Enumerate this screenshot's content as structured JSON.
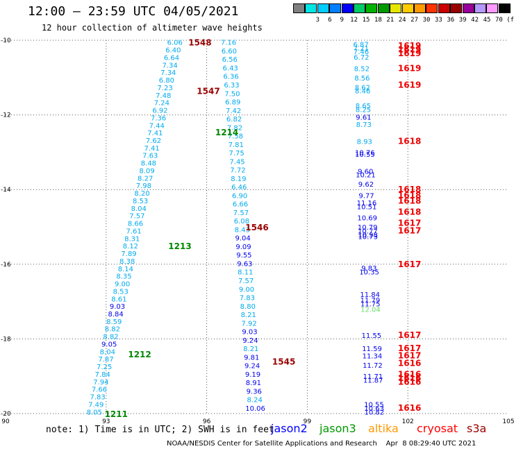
{
  "header": {
    "title": "12:00 — 23:59 UTC 04/05/2021",
    "subtitle": "12 hour collection of altimeter wave heights"
  },
  "color_scale": {
    "unit_label": "(ft)",
    "bins": [
      {
        "label": "",
        "color": "#808080"
      },
      {
        "label": "3",
        "color": "#00e6e6"
      },
      {
        "label": "6",
        "color": "#00ccff"
      },
      {
        "label": "9",
        "color": "#0080ff"
      },
      {
        "label": "12",
        "color": "#0000ff"
      },
      {
        "label": "15",
        "color": "#00cc66"
      },
      {
        "label": "18",
        "color": "#00b300"
      },
      {
        "label": "21",
        "color": "#009900"
      },
      {
        "label": "24",
        "color": "#e6e600"
      },
      {
        "label": "27",
        "color": "#ffcc00"
      },
      {
        "label": "30",
        "color": "#ff9900"
      },
      {
        "label": "33",
        "color": "#ff3300"
      },
      {
        "label": "36",
        "color": "#cc0000"
      },
      {
        "label": "39",
        "color": "#990000"
      },
      {
        "label": "42",
        "color": "#990099"
      },
      {
        "label": "45",
        "color": "#b399ff"
      },
      {
        "label": "70",
        "color": "#ff99ff"
      },
      {
        "label": "",
        "color": "#000000"
      }
    ]
  },
  "note": "note: 1) Time is in UTC; 2) SWH is in feet",
  "legend": [
    {
      "name": "jason2",
      "color": "#0000ff"
    },
    {
      "name": "jason3",
      "color": "#009900"
    },
    {
      "name": "altika",
      "color": "#ff9900"
    },
    {
      "name": "cryosat",
      "color": "#ff0000"
    },
    {
      "name": "s3a",
      "color": "#990000"
    }
  ],
  "footer": "NOAA/NESDIS Center for Satellite Applications and Research    Apr  8 08:29:40 UTC 2021",
  "chart_data": {
    "type": "scatter",
    "title": "12:00 — 23:59 UTC 04/05/2021",
    "subtitle": "12 hour collection of altimeter wave heights",
    "xlim": [
      90,
      105
    ],
    "ylim": [
      -20,
      -10
    ],
    "xticks": [
      90,
      93,
      96,
      99,
      102,
      105
    ],
    "yticks": [
      -10,
      -12,
      -14,
      -16,
      -18,
      -20
    ],
    "xtick_labels": [
      "90",
      "93",
      "96",
      "99",
      "102",
      "105"
    ],
    "ytick_labels": [
      "-10",
      "-12",
      "-14",
      "-16",
      "-18",
      "-20"
    ],
    "grid": true,
    "colors": {
      "cyan": "#00aaee",
      "blue": "#0000ee",
      "green": "#008800",
      "lightgreen": "#66dd66",
      "red": "#ee0000",
      "darkred": "#990000"
    },
    "tracks": [
      {
        "id": "A",
        "start": [
          95.05,
          -10.05
        ],
        "end": [
          92.65,
          -19.95
        ],
        "values": [
          "6.06",
          "6.40",
          "6.64",
          "7.34",
          "7.34",
          "6.80",
          "7.23",
          "7.48",
          "7.24",
          "6.92",
          "7.36",
          "7.44",
          "7.41",
          "7.62",
          "7.41",
          "7.63",
          "8.48",
          "8.09",
          "8.27",
          "7.98",
          "8.20",
          "8.53",
          "8.04",
          "7.57",
          "8.66",
          "7.61",
          "8.31",
          "8.12",
          "7.89",
          "8.38",
          "8.14",
          "8.35",
          "9.00",
          "8.53",
          "8.61",
          "9.03",
          "8.84",
          "8.59",
          "8.82",
          "8.82",
          "9.05",
          "8.04",
          "7.87",
          "7.25",
          "7.84",
          "7.94",
          "7.66",
          "7.83",
          "7.49",
          "8.05"
        ],
        "colors": {
          "35": "blue",
          "36": "blue",
          "40": "blue"
        }
      },
      {
        "id": "B",
        "start": [
          96.65,
          -10.05
        ],
        "end": [
          97.45,
          -19.85
        ],
        "values": [
          "7.16",
          "6.60",
          "6.56",
          "6.43",
          "6.36",
          "6.33",
          "7.50",
          "6.89",
          "7.42",
          "6.82",
          "7.82",
          "7.58",
          "7.81",
          "7.75",
          "7.45",
          "7.72",
          "8.19",
          "6.46",
          "6.90",
          "6.66",
          "7.57",
          "6.08",
          "8.43",
          "9.04",
          "9.09",
          "9.55",
          "9.63",
          "8.11",
          "7.57",
          "9.00",
          "7.83",
          "8.80",
          "8.21",
          "7.92",
          "9.03",
          "9.24",
          "8.21",
          "9.81",
          "9.24",
          "9.19",
          "8.91",
          "9.36",
          "8.24",
          "10.06"
        ],
        "colors": {
          "23": "blue",
          "24": "blue",
          "25": "blue",
          "26": "blue",
          "34": "blue",
          "35": "blue",
          "37": "blue",
          "38": "blue",
          "39": "blue",
          "40": "blue",
          "41": "blue",
          "43": "blue"
        }
      },
      {
        "id": "C",
        "start": [
          100.6,
          -10.1
        ],
        "end": [
          101.0,
          -20.0
        ],
        "points": [
          [
            -10.1,
            "6.87",
            "cyan"
          ],
          [
            -10.2,
            "7.21",
            "cyan"
          ],
          [
            -10.3,
            "7.46",
            "cyan"
          ],
          [
            -10.45,
            "6.72",
            "cyan"
          ],
          [
            -10.75,
            "8.52",
            "cyan"
          ],
          [
            -11.0,
            "8.56",
            "cyan"
          ],
          [
            -11.25,
            "8.62",
            "cyan"
          ],
          [
            -11.35,
            "8.46",
            "cyan"
          ],
          [
            -11.75,
            "8.65",
            "cyan"
          ],
          [
            -11.85,
            "8.25",
            "cyan"
          ],
          [
            -12.05,
            "9.61",
            "blue"
          ],
          [
            -12.25,
            "8.73",
            "cyan"
          ],
          [
            -12.7,
            "8.93",
            "cyan"
          ],
          [
            -13.0,
            "10.76",
            "blue"
          ],
          [
            -13.05,
            "10.55",
            "blue"
          ],
          [
            -13.5,
            "9.60",
            "blue"
          ],
          [
            -13.6,
            "10.21",
            "blue"
          ],
          [
            -13.85,
            "9.62",
            "blue"
          ],
          [
            -14.15,
            "9.77",
            "blue"
          ],
          [
            -14.35,
            "11.16",
            "blue"
          ],
          [
            -14.45,
            "10.51",
            "blue"
          ],
          [
            -14.75,
            "10.69",
            "blue"
          ],
          [
            -15.0,
            "10.79",
            "blue"
          ],
          [
            -15.1,
            "10.77",
            "blue"
          ],
          [
            -15.2,
            "10.98",
            "blue"
          ],
          [
            -15.25,
            "10.73",
            "blue"
          ],
          [
            -16.1,
            "9.83",
            "blue"
          ],
          [
            -16.2,
            "10.35",
            "blue"
          ],
          [
            -16.8,
            "11.84",
            "blue"
          ],
          [
            -16.95,
            "11.79",
            "blue"
          ],
          [
            -17.05,
            "11.75",
            "blue"
          ],
          [
            -17.2,
            "12.04",
            "lightgreen"
          ],
          [
            -17.9,
            "11.55",
            "blue"
          ],
          [
            -18.25,
            "11.59",
            "blue"
          ],
          [
            -18.45,
            "11.34",
            "blue"
          ],
          [
            -18.7,
            "11.72",
            "blue"
          ],
          [
            -19.0,
            "11.71",
            "blue"
          ],
          [
            -19.1,
            "11.87",
            "blue"
          ],
          [
            -19.75,
            "10.55",
            "blue"
          ],
          [
            -19.85,
            "10.63",
            "blue"
          ],
          [
            -19.95,
            "10.82",
            "blue"
          ]
        ]
      }
    ],
    "cryosat_points": [
      [
        -10.15,
        "1619"
      ],
      [
        -10.25,
        "1619"
      ],
      [
        -10.35,
        "1619"
      ],
      [
        -10.75,
        "1619"
      ],
      [
        -11.2,
        "1619"
      ],
      [
        -12.7,
        "1618"
      ],
      [
        -14.0,
        "1618"
      ],
      [
        -14.15,
        "1618"
      ],
      [
        -14.3,
        "1618"
      ],
      [
        -14.6,
        "1618"
      ],
      [
        -14.9,
        "1617"
      ],
      [
        -15.1,
        "1617"
      ],
      [
        -16.0,
        "1617"
      ],
      [
        -17.9,
        "1617"
      ],
      [
        -18.25,
        "1617"
      ],
      [
        -18.45,
        "1617"
      ],
      [
        -18.65,
        "1616"
      ],
      [
        -18.95,
        "1616"
      ],
      [
        -19.05,
        "1616"
      ],
      [
        -19.15,
        "1616"
      ],
      [
        -19.85,
        "1616"
      ]
    ],
    "orbit_labels": [
      {
        "text": "1548",
        "x": 95.8,
        "y": -10.05,
        "color": "darkred"
      },
      {
        "text": "1547",
        "x": 96.05,
        "y": -11.35,
        "color": "darkred"
      },
      {
        "text": "1214",
        "x": 96.6,
        "y": -12.45,
        "color": "green"
      },
      {
        "text": "1546",
        "x": 97.5,
        "y": -15.0,
        "color": "darkred"
      },
      {
        "text": "1213",
        "x": 95.2,
        "y": -15.5,
        "color": "green"
      },
      {
        "text": "1545",
        "x": 98.3,
        "y": -18.6,
        "color": "darkred"
      },
      {
        "text": "1212",
        "x": 94.0,
        "y": -18.4,
        "color": "green"
      },
      {
        "text": "1211",
        "x": 93.3,
        "y": -20.0,
        "color": "green"
      }
    ]
  }
}
